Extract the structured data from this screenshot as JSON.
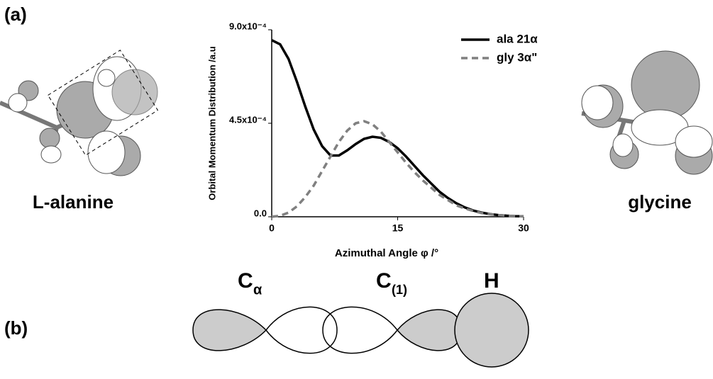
{
  "figure": {
    "panel_a": "(a)",
    "panel_b": "(b)",
    "left_molecule": "L-alanine",
    "right_molecule": "glycine",
    "atoms": [
      {
        "symbol": "C",
        "subscript": "α"
      },
      {
        "symbol": "C",
        "subscript": "(1)"
      },
      {
        "symbol": "H"
      }
    ]
  },
  "chart_data": {
    "type": "line",
    "x_label": "Azimuthal Angle φ /°",
    "y_label": "Orbital Momentum Distribution /a.u",
    "x": [
      0,
      1,
      2,
      3,
      4,
      5,
      6,
      7,
      8,
      9,
      10,
      11,
      12,
      13,
      14,
      15,
      16,
      17,
      18,
      19,
      20,
      21,
      22,
      23,
      24,
      25,
      26,
      27,
      28,
      29,
      30
    ],
    "series": [
      {
        "name": "ala 21α",
        "color": "#000000",
        "dash": "none",
        "values": [
          0.00085,
          0.00083,
          0.00076,
          0.00065,
          0.00053,
          0.00042,
          0.00034,
          0.000295,
          0.000295,
          0.00032,
          0.00035,
          0.000375,
          0.000385,
          0.00038,
          0.00036,
          0.00033,
          0.00029,
          0.000245,
          0.0002,
          0.00016,
          0.00012,
          9e-05,
          6.5e-05,
          4.5e-05,
          3e-05,
          2e-05,
          1.3e-05,
          8e-06,
          5e-06,
          3e-06,
          2e-06
        ]
      },
      {
        "name": "gly 3α\"",
        "color": "#808080",
        "dash": "9 6",
        "values": [
          0,
          5e-06,
          2e-05,
          5e-05,
          9.5e-05,
          0.00015,
          0.00022,
          0.00029,
          0.00036,
          0.000415,
          0.00045,
          0.00046,
          0.000445,
          0.00041,
          0.00036,
          0.00031,
          0.00026,
          0.000215,
          0.000175,
          0.00014,
          0.000105,
          8e-05,
          5.5e-05,
          4e-05,
          2.8e-05,
          1.8e-05,
          1.2e-05,
          8e-06,
          5e-06,
          3e-06,
          2e-06
        ]
      }
    ],
    "xlim": [
      0,
      30
    ],
    "xticks": [
      0,
      15,
      30
    ],
    "ylim": [
      0,
      0.0009
    ],
    "yticks": [
      {
        "value": 0,
        "label": "0.0"
      },
      {
        "value": 0.00045,
        "label": "4.5x10⁻⁴"
      },
      {
        "value": 0.0009,
        "label": "9.0x10⁻⁴"
      }
    ]
  }
}
